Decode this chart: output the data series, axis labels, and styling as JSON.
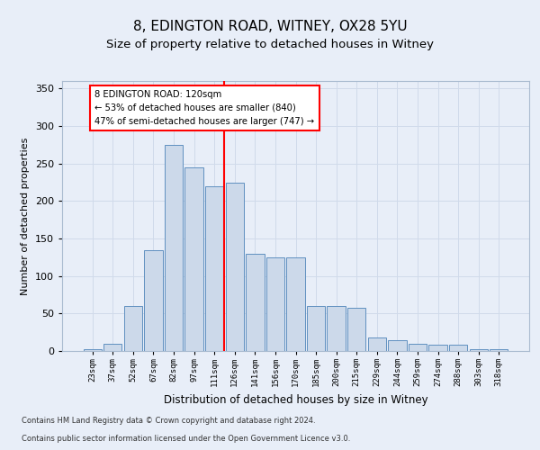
{
  "title1": "8, EDINGTON ROAD, WITNEY, OX28 5YU",
  "title2": "Size of property relative to detached houses in Witney",
  "xlabel": "Distribution of detached houses by size in Witney",
  "ylabel": "Number of detached properties",
  "categories": [
    "23sqm",
    "37sqm",
    "52sqm",
    "67sqm",
    "82sqm",
    "97sqm",
    "111sqm",
    "126sqm",
    "141sqm",
    "156sqm",
    "170sqm",
    "185sqm",
    "200sqm",
    "215sqm",
    "229sqm",
    "244sqm",
    "259sqm",
    "274sqm",
    "288sqm",
    "303sqm",
    "318sqm"
  ],
  "values": [
    3,
    10,
    60,
    135,
    275,
    245,
    220,
    225,
    130,
    125,
    125,
    60,
    60,
    58,
    18,
    15,
    10,
    8,
    8,
    3,
    3
  ],
  "bar_color": "#ccd9ea",
  "bar_edge_color": "#6090c0",
  "grid_color": "#d0daea",
  "vline_color": "red",
  "annotation_text": "8 EDINGTON ROAD: 120sqm\n← 53% of detached houses are smaller (840)\n47% of semi-detached houses are larger (747) →",
  "annotation_box_color": "white",
  "annotation_box_edge": "red",
  "ylim": [
    0,
    360
  ],
  "yticks": [
    0,
    50,
    100,
    150,
    200,
    250,
    300,
    350
  ],
  "footer1": "Contains HM Land Registry data © Crown copyright and database right 2024.",
  "footer2": "Contains public sector information licensed under the Open Government Licence v3.0.",
  "bg_color": "#e8eef8",
  "title1_fontsize": 11,
  "title2_fontsize": 9.5,
  "xlabel_fontsize": 8.5,
  "ylabel_fontsize": 8
}
